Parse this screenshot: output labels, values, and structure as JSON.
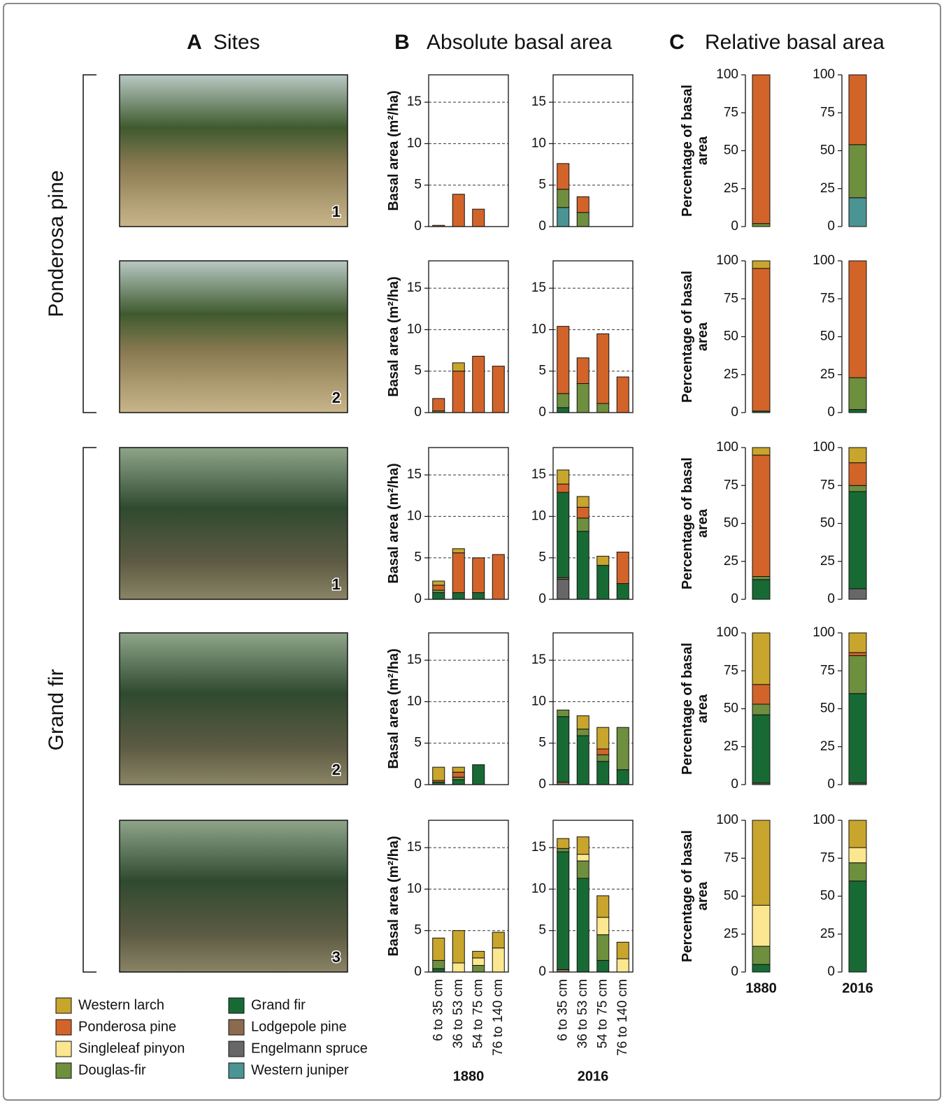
{
  "panels": [
    {
      "letter": "A",
      "title": "Sites"
    },
    {
      "letter": "B",
      "title": "Absolute basal area"
    },
    {
      "letter": "C",
      "title": "Relative basal area"
    }
  ],
  "groups": [
    {
      "label": "Ponderosa pine",
      "sites": [
        "1",
        "2"
      ]
    },
    {
      "label": "Grand fir",
      "sites": [
        "1",
        "2",
        "3"
      ]
    }
  ],
  "legend": [
    {
      "name": "Western larch",
      "color": "#c8a52c"
    },
    {
      "name": "Ponderosa pine",
      "color": "#d2642a"
    },
    {
      "name": "Singleleaf pinyon",
      "color": "#fbe78f"
    },
    {
      "name": "Douglas-fir",
      "color": "#6e8f3e"
    },
    {
      "name": "Grand fir",
      "color": "#186a35"
    },
    {
      "name": "Lodgepole pine",
      "color": "#8c6a4e"
    },
    {
      "name": "Engelmann spruce",
      "color": "#676767"
    },
    {
      "name": "Western juniper",
      "color": "#4a9494"
    }
  ],
  "chart_data": [
    {
      "type": "bar",
      "stacked": true,
      "ylabel": "Basal area (m²/ha)",
      "categories": [
        null,
        null,
        null,
        null
      ],
      "ylim": [
        0,
        18.3
      ],
      "yticks": [
        0,
        5,
        10,
        15
      ],
      "grid": true,
      "series": [
        {
          "name": "Ponderosa pine",
          "color": "#d2642a",
          "values": [
            0.15,
            3.9,
            2.1,
            0
          ]
        }
      ]
    },
    {
      "type": "bar",
      "stacked": true,
      "categories": [
        null,
        null,
        null,
        null
      ],
      "ylim": [
        0,
        18.3
      ],
      "yticks": [
        0,
        5,
        10,
        15
      ],
      "grid": true,
      "series": [
        {
          "name": "Ponderosa pine",
          "color": "#d2642a",
          "values": [
            3.1,
            1.9,
            0,
            0
          ]
        },
        {
          "name": "Douglas-fir",
          "color": "#6e8f3e",
          "values": [
            2.2,
            1.7,
            0,
            0
          ]
        },
        {
          "name": "Western juniper",
          "color": "#4a9494",
          "values": [
            2.3,
            0,
            0,
            0
          ]
        }
      ]
    },
    {
      "type": "bar",
      "stacked": true,
      "ylabel": "Basal area (m²/ha)",
      "categories": [
        null,
        null,
        null,
        null
      ],
      "ylim": [
        0,
        18.3
      ],
      "yticks": [
        0,
        5,
        10,
        15
      ],
      "grid": true,
      "series": [
        {
          "name": "Western larch",
          "color": "#c8a52c",
          "values": [
            0,
            1.0,
            0,
            0
          ]
        },
        {
          "name": "Ponderosa pine",
          "color": "#d2642a",
          "values": [
            1.5,
            5.0,
            6.8,
            5.6
          ]
        },
        {
          "name": "Douglas-fir",
          "color": "#6e8f3e",
          "values": [
            0.2,
            0,
            0,
            0
          ]
        }
      ]
    },
    {
      "type": "bar",
      "stacked": true,
      "categories": [
        null,
        null,
        null,
        null
      ],
      "ylim": [
        0,
        18.3
      ],
      "yticks": [
        0,
        5,
        10,
        15
      ],
      "grid": true,
      "series": [
        {
          "name": "Ponderosa pine",
          "color": "#d2642a",
          "values": [
            8.1,
            3.1,
            8.4,
            4.3
          ]
        },
        {
          "name": "Douglas-fir",
          "color": "#6e8f3e",
          "values": [
            1.7,
            3.5,
            1.1,
            0
          ]
        },
        {
          "name": "Grand fir",
          "color": "#186a35",
          "values": [
            0.6,
            0,
            0,
            0
          ]
        }
      ]
    },
    {
      "type": "bar",
      "stacked": true,
      "ylabel": "Basal area (m²/ha)",
      "categories": [
        null,
        null,
        null,
        null
      ],
      "ylim": [
        0,
        18.3
      ],
      "yticks": [
        0,
        5,
        10,
        15
      ],
      "grid": true,
      "series": [
        {
          "name": "Western larch",
          "color": "#c8a52c",
          "values": [
            0.5,
            0.5,
            0,
            0
          ]
        },
        {
          "name": "Ponderosa pine",
          "color": "#d2642a",
          "values": [
            0.6,
            4.8,
            4.2,
            5.4
          ]
        },
        {
          "name": "Douglas-fir",
          "color": "#6e8f3e",
          "values": [
            0.3,
            0,
            0,
            0
          ]
        },
        {
          "name": "Grand fir",
          "color": "#186a35",
          "values": [
            0.8,
            0.8,
            0.8,
            0
          ]
        }
      ]
    },
    {
      "type": "bar",
      "stacked": true,
      "categories": [
        null,
        null,
        null,
        null
      ],
      "ylim": [
        0,
        18.3
      ],
      "yticks": [
        0,
        5,
        10,
        15
      ],
      "grid": true,
      "series": [
        {
          "name": "Western larch",
          "color": "#c8a52c",
          "values": [
            1.7,
            1.3,
            1.1,
            0
          ]
        },
        {
          "name": "Ponderosa pine",
          "color": "#d2642a",
          "values": [
            1.0,
            1.3,
            0,
            3.8
          ]
        },
        {
          "name": "Douglas-fir",
          "color": "#6e8f3e",
          "values": [
            0,
            1.6,
            0,
            0
          ]
        },
        {
          "name": "Grand fir",
          "color": "#186a35",
          "values": [
            10.3,
            8.2,
            4.1,
            1.9
          ]
        },
        {
          "name": "Lodgepole pine",
          "color": "#8c6a4e",
          "values": [
            0.2,
            0,
            0,
            0
          ]
        },
        {
          "name": "Engelmann spruce",
          "color": "#676767",
          "values": [
            2.4,
            0,
            0,
            0
          ]
        }
      ]
    },
    {
      "type": "bar",
      "stacked": true,
      "ylabel": "Basal area (m²/ha)",
      "categories": [
        null,
        null,
        null,
        null
      ],
      "ylim": [
        0,
        18.3
      ],
      "yticks": [
        0,
        5,
        10,
        15
      ],
      "grid": true,
      "series": [
        {
          "name": "Western larch",
          "color": "#c8a52c",
          "values": [
            1.6,
            0.6,
            0,
            0
          ]
        },
        {
          "name": "Ponderosa pine",
          "color": "#d2642a",
          "values": [
            0.2,
            0.6,
            0,
            0
          ]
        },
        {
          "name": "Douglas-fir",
          "color": "#6e8f3e",
          "values": [
            0,
            0.3,
            0,
            0
          ]
        },
        {
          "name": "Grand fir",
          "color": "#186a35",
          "values": [
            0.3,
            0.6,
            2.4,
            0
          ]
        }
      ]
    },
    {
      "type": "bar",
      "stacked": true,
      "categories": [
        null,
        null,
        null,
        null
      ],
      "ylim": [
        0,
        18.3
      ],
      "yticks": [
        0,
        5,
        10,
        15
      ],
      "grid": true,
      "series": [
        {
          "name": "Western larch",
          "color": "#c8a52c",
          "values": [
            0,
            1.6,
            2.6,
            0
          ]
        },
        {
          "name": "Ponderosa pine",
          "color": "#d2642a",
          "values": [
            0,
            0,
            0.7,
            0
          ]
        },
        {
          "name": "Douglas-fir",
          "color": "#6e8f3e",
          "values": [
            0.8,
            0.8,
            0.8,
            5.1
          ]
        },
        {
          "name": "Grand fir",
          "color": "#186a35",
          "values": [
            7.9,
            5.9,
            2.8,
            1.8
          ]
        },
        {
          "name": "Lodgepole pine",
          "color": "#8c6a4e",
          "values": [
            0.3,
            0,
            0,
            0
          ]
        }
      ]
    },
    {
      "type": "bar",
      "stacked": true,
      "ylabel": "Basal area (m²/ha)",
      "xlabel": "1880",
      "categories": [
        "6 to 35 cm",
        "36 to 53 cm",
        "54 to 75 cm",
        "76 to 140 cm"
      ],
      "ylim": [
        0,
        18.3
      ],
      "yticks": [
        0,
        5,
        10,
        15
      ],
      "grid": true,
      "series": [
        {
          "name": "Western larch",
          "color": "#c8a52c",
          "values": [
            2.7,
            3.9,
            0.8,
            1.9
          ]
        },
        {
          "name": "Singleleaf pinyon",
          "color": "#fbe78f",
          "values": [
            0,
            1.1,
            0.9,
            2.9
          ]
        },
        {
          "name": "Douglas-fir",
          "color": "#6e8f3e",
          "values": [
            1.0,
            0,
            0.8,
            0
          ]
        },
        {
          "name": "Grand fir",
          "color": "#186a35",
          "values": [
            0.4,
            0,
            0,
            0
          ]
        }
      ]
    },
    {
      "type": "bar",
      "stacked": true,
      "xlabel": "2016",
      "categories": [
        "6 to 35 cm",
        "36 to 53 cm",
        "54 to 75 cm",
        "76 to 140 cm"
      ],
      "ylim": [
        0,
        18.3
      ],
      "yticks": [
        0,
        5,
        10,
        15
      ],
      "grid": true,
      "series": [
        {
          "name": "Western larch",
          "color": "#c8a52c",
          "values": [
            1.2,
            2.1,
            2.6,
            2.0
          ]
        },
        {
          "name": "Singleleaf pinyon",
          "color": "#fbe78f",
          "values": [
            0,
            0.8,
            2.1,
            1.6
          ]
        },
        {
          "name": "Douglas-fir",
          "color": "#6e8f3e",
          "values": [
            0.4,
            2.1,
            3.1,
            0
          ]
        },
        {
          "name": "Grand fir",
          "color": "#186a35",
          "values": [
            14.2,
            11.3,
            1.4,
            0
          ]
        },
        {
          "name": "Lodgepole pine",
          "color": "#8c6a4e",
          "values": [
            0.3,
            0,
            0,
            0
          ]
        }
      ]
    },
    {
      "type": "bar",
      "stacked": true,
      "ylabel": "Percentage of basal area",
      "categories": [
        null
      ],
      "ylim": [
        0,
        100
      ],
      "yticks": [
        0,
        25,
        50,
        75,
        100
      ],
      "grid": false,
      "series": [
        {
          "name": "Ponderosa pine",
          "color": "#d2642a",
          "values": [
            98
          ]
        },
        {
          "name": "Douglas-fir",
          "color": "#6e8f3e",
          "values": [
            2
          ]
        }
      ]
    },
    {
      "type": "bar",
      "stacked": true,
      "categories": [
        null
      ],
      "ylim": [
        0,
        100
      ],
      "yticks": [
        0,
        25,
        50,
        75,
        100
      ],
      "grid": false,
      "series": [
        {
          "name": "Ponderosa pine",
          "color": "#d2642a",
          "values": [
            46
          ]
        },
        {
          "name": "Douglas-fir",
          "color": "#6e8f3e",
          "values": [
            35
          ]
        },
        {
          "name": "Western juniper",
          "color": "#4a9494",
          "values": [
            19
          ]
        }
      ]
    },
    {
      "type": "bar",
      "stacked": true,
      "ylabel": "Percentage of basal area",
      "categories": [
        null
      ],
      "ylim": [
        0,
        100
      ],
      "yticks": [
        0,
        25,
        50,
        75,
        100
      ],
      "grid": false,
      "series": [
        {
          "name": "Western larch",
          "color": "#c8a52c",
          "values": [
            5
          ]
        },
        {
          "name": "Ponderosa pine",
          "color": "#d2642a",
          "values": [
            94
          ]
        },
        {
          "name": "Grand fir",
          "color": "#186a35",
          "values": [
            1
          ]
        }
      ]
    },
    {
      "type": "bar",
      "stacked": true,
      "categories": [
        null
      ],
      "ylim": [
        0,
        100
      ],
      "yticks": [
        0,
        25,
        50,
        75,
        100
      ],
      "grid": false,
      "series": [
        {
          "name": "Ponderosa pine",
          "color": "#d2642a",
          "values": [
            77
          ]
        },
        {
          "name": "Douglas-fir",
          "color": "#6e8f3e",
          "values": [
            21
          ]
        },
        {
          "name": "Grand fir",
          "color": "#186a35",
          "values": [
            2
          ]
        }
      ]
    },
    {
      "type": "bar",
      "stacked": true,
      "ylabel": "Percentage of basal area",
      "categories": [
        null
      ],
      "ylim": [
        0,
        100
      ],
      "yticks": [
        0,
        25,
        50,
        75,
        100
      ],
      "grid": false,
      "series": [
        {
          "name": "Western larch",
          "color": "#c8a52c",
          "values": [
            5
          ]
        },
        {
          "name": "Ponderosa pine",
          "color": "#d2642a",
          "values": [
            80
          ]
        },
        {
          "name": "Douglas-fir",
          "color": "#6e8f3e",
          "values": [
            2
          ]
        },
        {
          "name": "Grand fir",
          "color": "#186a35",
          "values": [
            13
          ]
        }
      ]
    },
    {
      "type": "bar",
      "stacked": true,
      "categories": [
        null
      ],
      "ylim": [
        0,
        100
      ],
      "yticks": [
        0,
        25,
        50,
        75,
        100
      ],
      "grid": false,
      "series": [
        {
          "name": "Western larch",
          "color": "#c8a52c",
          "values": [
            10
          ]
        },
        {
          "name": "Ponderosa pine",
          "color": "#d2642a",
          "values": [
            15
          ]
        },
        {
          "name": "Douglas-fir",
          "color": "#6e8f3e",
          "values": [
            4
          ]
        },
        {
          "name": "Grand fir",
          "color": "#186a35",
          "values": [
            64
          ]
        },
        {
          "name": "Engelmann spruce",
          "color": "#676767",
          "values": [
            7
          ]
        }
      ]
    },
    {
      "type": "bar",
      "stacked": true,
      "ylabel": "Percentage of basal area",
      "categories": [
        null
      ],
      "ylim": [
        0,
        100
      ],
      "yticks": [
        0,
        25,
        50,
        75,
        100
      ],
      "grid": false,
      "series": [
        {
          "name": "Western larch",
          "color": "#c8a52c",
          "values": [
            34
          ]
        },
        {
          "name": "Ponderosa pine",
          "color": "#d2642a",
          "values": [
            13
          ]
        },
        {
          "name": "Douglas-fir",
          "color": "#6e8f3e",
          "values": [
            7
          ]
        },
        {
          "name": "Grand fir",
          "color": "#186a35",
          "values": [
            45
          ]
        },
        {
          "name": "Lodgepole pine",
          "color": "#8c6a4e",
          "values": [
            1
          ]
        }
      ]
    },
    {
      "type": "bar",
      "stacked": true,
      "categories": [
        null
      ],
      "ylim": [
        0,
        100
      ],
      "yticks": [
        0,
        25,
        50,
        75,
        100
      ],
      "grid": false,
      "series": [
        {
          "name": "Western larch",
          "color": "#c8a52c",
          "values": [
            13
          ]
        },
        {
          "name": "Ponderosa pine",
          "color": "#d2642a",
          "values": [
            2
          ]
        },
        {
          "name": "Douglas-fir",
          "color": "#6e8f3e",
          "values": [
            25
          ]
        },
        {
          "name": "Grand fir",
          "color": "#186a35",
          "values": [
            59
          ]
        },
        {
          "name": "Lodgepole pine",
          "color": "#8c6a4e",
          "values": [
            1
          ]
        }
      ]
    },
    {
      "type": "bar",
      "stacked": true,
      "ylabel": "Percentage of basal area",
      "categories": [
        "1880"
      ],
      "ylim": [
        0,
        100
      ],
      "yticks": [
        0,
        25,
        50,
        75,
        100
      ],
      "grid": false,
      "series": [
        {
          "name": "Western larch",
          "color": "#c8a52c",
          "values": [
            56
          ]
        },
        {
          "name": "Singleleaf pinyon",
          "color": "#fbe78f",
          "values": [
            27
          ]
        },
        {
          "name": "Douglas-fir",
          "color": "#6e8f3e",
          "values": [
            12
          ]
        },
        {
          "name": "Grand fir",
          "color": "#186a35",
          "values": [
            5
          ]
        }
      ]
    },
    {
      "type": "bar",
      "stacked": true,
      "categories": [
        "2016"
      ],
      "ylim": [
        0,
        100
      ],
      "yticks": [
        0,
        25,
        50,
        75,
        100
      ],
      "grid": false,
      "series": [
        {
          "name": "Western larch",
          "color": "#c8a52c",
          "values": [
            18
          ]
        },
        {
          "name": "Singleleaf pinyon",
          "color": "#fbe78f",
          "values": [
            10
          ]
        },
        {
          "name": "Douglas-fir",
          "color": "#6e8f3e",
          "values": [
            12
          ]
        },
        {
          "name": "Grand fir",
          "color": "#186a35",
          "values": [
            60
          ]
        }
      ]
    }
  ]
}
